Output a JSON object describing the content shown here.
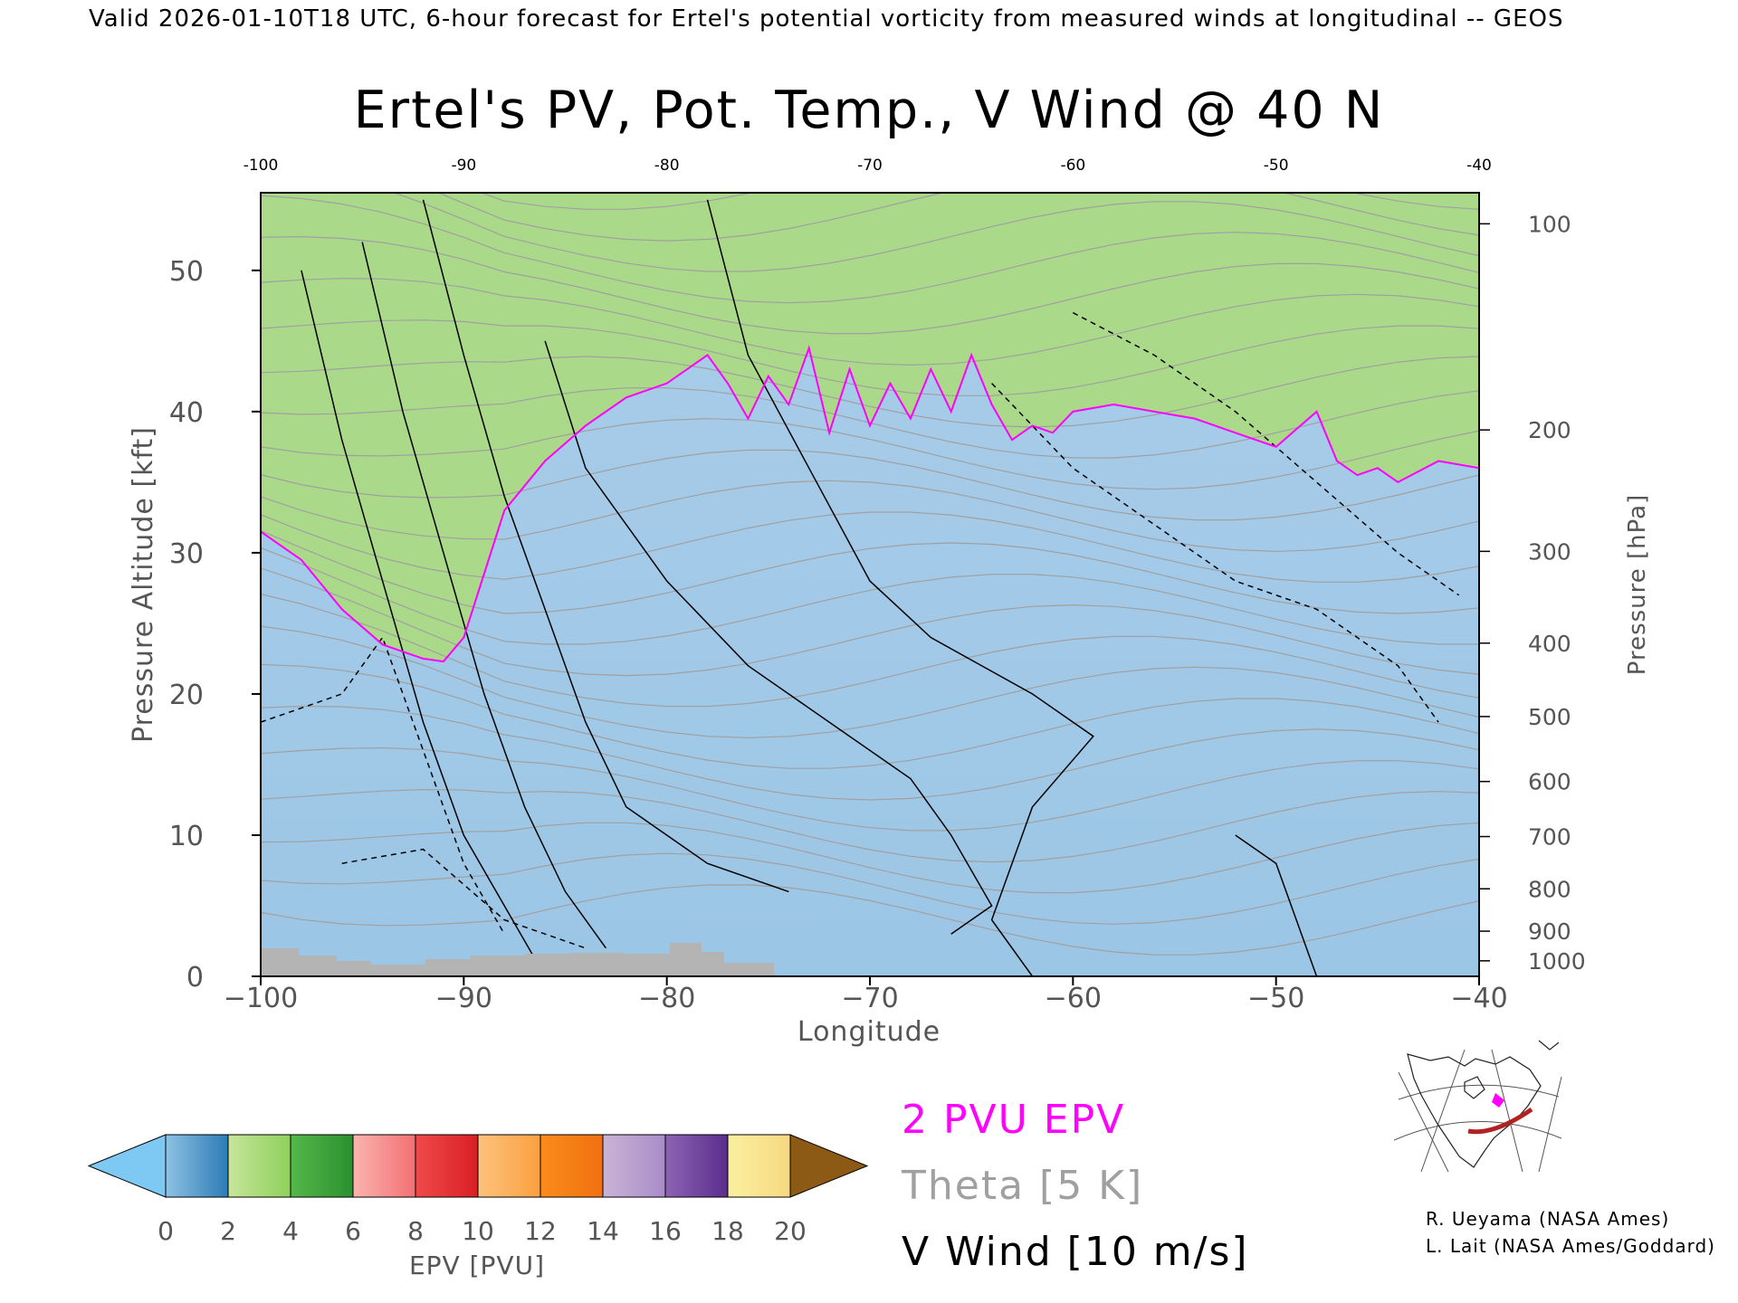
{
  "header": {
    "valid_line": "Valid 2026-01-10T18 UTC, 6-hour forecast for Ertel's potential vorticity from measured winds at longitudinal -- GEOS"
  },
  "chart_data": {
    "type": "heatmap",
    "title": "Ertel's PV, Pot. Temp., V Wind @ 40 N",
    "xlabel": "Longitude",
    "ylabel": "Pressure Altitude [kft]",
    "ylabel_right": "Pressure [hPa]",
    "xlim": [
      -100,
      -40
    ],
    "ylim": [
      0,
      55.5
    ],
    "x_ticks_bottom": [
      "−100",
      "−90",
      "−80",
      "−70",
      "−60",
      "−50",
      "−40"
    ],
    "x_ticks_top": [
      "-100",
      "-90",
      "-80",
      "-70",
      "-60",
      "-50",
      "-40"
    ],
    "y_ticks": [
      {
        "value": 0,
        "label": "0"
      },
      {
        "value": 10,
        "label": "10"
      },
      {
        "value": 20,
        "label": "20"
      },
      {
        "value": 30,
        "label": "30"
      },
      {
        "value": 40,
        "label": "40"
      },
      {
        "value": 50,
        "label": "50"
      }
    ],
    "pressure_ticks": [
      {
        "kft": 1.1,
        "label": "1000"
      },
      {
        "kft": 3.2,
        "label": "900"
      },
      {
        "kft": 6.2,
        "label": "800"
      },
      {
        "kft": 9.9,
        "label": "700"
      },
      {
        "kft": 13.8,
        "label": "600"
      },
      {
        "kft": 18.4,
        "label": "500"
      },
      {
        "kft": 23.6,
        "label": "400"
      },
      {
        "kft": 30.1,
        "label": "300"
      },
      {
        "kft": 38.7,
        "label": "200"
      },
      {
        "kft": 53.3,
        "label": "100"
      }
    ],
    "tropopause_2pvu": [
      {
        "lon": -100,
        "kft": 31.5
      },
      {
        "lon": -98,
        "kft": 29.5
      },
      {
        "lon": -96,
        "kft": 26.0
      },
      {
        "lon": -94,
        "kft": 23.5
      },
      {
        "lon": -92,
        "kft": 22.5
      },
      {
        "lon": -91,
        "kft": 22.3
      },
      {
        "lon": -90,
        "kft": 24.0
      },
      {
        "lon": -89,
        "kft": 28.5
      },
      {
        "lon": -88,
        "kft": 33.0
      },
      {
        "lon": -86,
        "kft": 36.5
      },
      {
        "lon": -84,
        "kft": 39.0
      },
      {
        "lon": -82,
        "kft": 41.0
      },
      {
        "lon": -80,
        "kft": 42.0
      },
      {
        "lon": -78,
        "kft": 44.0
      },
      {
        "lon": -77,
        "kft": 42.0
      },
      {
        "lon": -76,
        "kft": 39.5
      },
      {
        "lon": -75,
        "kft": 42.5
      },
      {
        "lon": -74,
        "kft": 40.5
      },
      {
        "lon": -73,
        "kft": 44.5
      },
      {
        "lon": -72,
        "kft": 38.5
      },
      {
        "lon": -71,
        "kft": 43.0
      },
      {
        "lon": -70,
        "kft": 39.0
      },
      {
        "lon": -69,
        "kft": 42.0
      },
      {
        "lon": -68,
        "kft": 39.5
      },
      {
        "lon": -67,
        "kft": 43.0
      },
      {
        "lon": -66,
        "kft": 40.0
      },
      {
        "lon": -65,
        "kft": 44.0
      },
      {
        "lon": -64,
        "kft": 40.5
      },
      {
        "lon": -63,
        "kft": 38.0
      },
      {
        "lon": -62,
        "kft": 39.0
      },
      {
        "lon": -61,
        "kft": 38.5
      },
      {
        "lon": -60,
        "kft": 40.0
      },
      {
        "lon": -58,
        "kft": 40.5
      },
      {
        "lon": -56,
        "kft": 40.0
      },
      {
        "lon": -54,
        "kft": 39.5
      },
      {
        "lon": -52,
        "kft": 38.5
      },
      {
        "lon": -50,
        "kft": 37.5
      },
      {
        "lon": -48,
        "kft": 40.0
      },
      {
        "lon": -47,
        "kft": 36.5
      },
      {
        "lon": -46,
        "kft": 35.5
      },
      {
        "lon": -45,
        "kft": 36.0
      },
      {
        "lon": -44,
        "kft": 35.0
      },
      {
        "lon": -42,
        "kft": 36.5
      },
      {
        "lon": -40,
        "kft": 36.0
      }
    ],
    "stratosphere_bands": {
      "band_width_kft": [
        2.5,
        2.5,
        2.5,
        3.0,
        5.0
      ],
      "colors": [
        "#abd98a",
        "#3da63a",
        "#fb9a9a",
        "#e6323a",
        "#fc9438"
      ]
    },
    "colorbar": {
      "label": "EPV [PVU]",
      "ticks": [
        "0",
        "2",
        "4",
        "6",
        "8",
        "10",
        "12",
        "14",
        "16",
        "18",
        "20"
      ],
      "under_color": "#7ec8f4",
      "over_color": "#8c5a14",
      "segments": [
        [
          "#8ec2e3",
          "#2c7bb6"
        ],
        [
          "#c6e59a",
          "#8fd05c"
        ],
        [
          "#55b84a",
          "#2a9030"
        ],
        [
          "#fbb4b0",
          "#f27072"
        ],
        [
          "#f04a4a",
          "#d81f26"
        ],
        [
          "#fdc27c",
          "#fca040"
        ],
        [
          "#fb8c1a",
          "#f07010"
        ],
        [
          "#cab4d6",
          "#a88cc8"
        ],
        [
          "#8c64b4",
          "#5a2d8c"
        ],
        [
          "#fbf0a0",
          "#f6d880"
        ],
        [
          "#dcaa50",
          "#9c6a1c"
        ]
      ]
    },
    "legend": {
      "epv_label": "2 PVU EPV",
      "theta_label": "Theta [5 K]",
      "wind_label": "V Wind [10 m/s]",
      "epv_color": "#ff00ff",
      "theta_color": "#a0a0a0",
      "wind_color": "#000000"
    },
    "terrain_color": "#b4b4b4",
    "credits": [
      "R. Ueyama (NASA Ames)",
      "L. Lait (NASA Ames/Goddard)"
    ]
  }
}
